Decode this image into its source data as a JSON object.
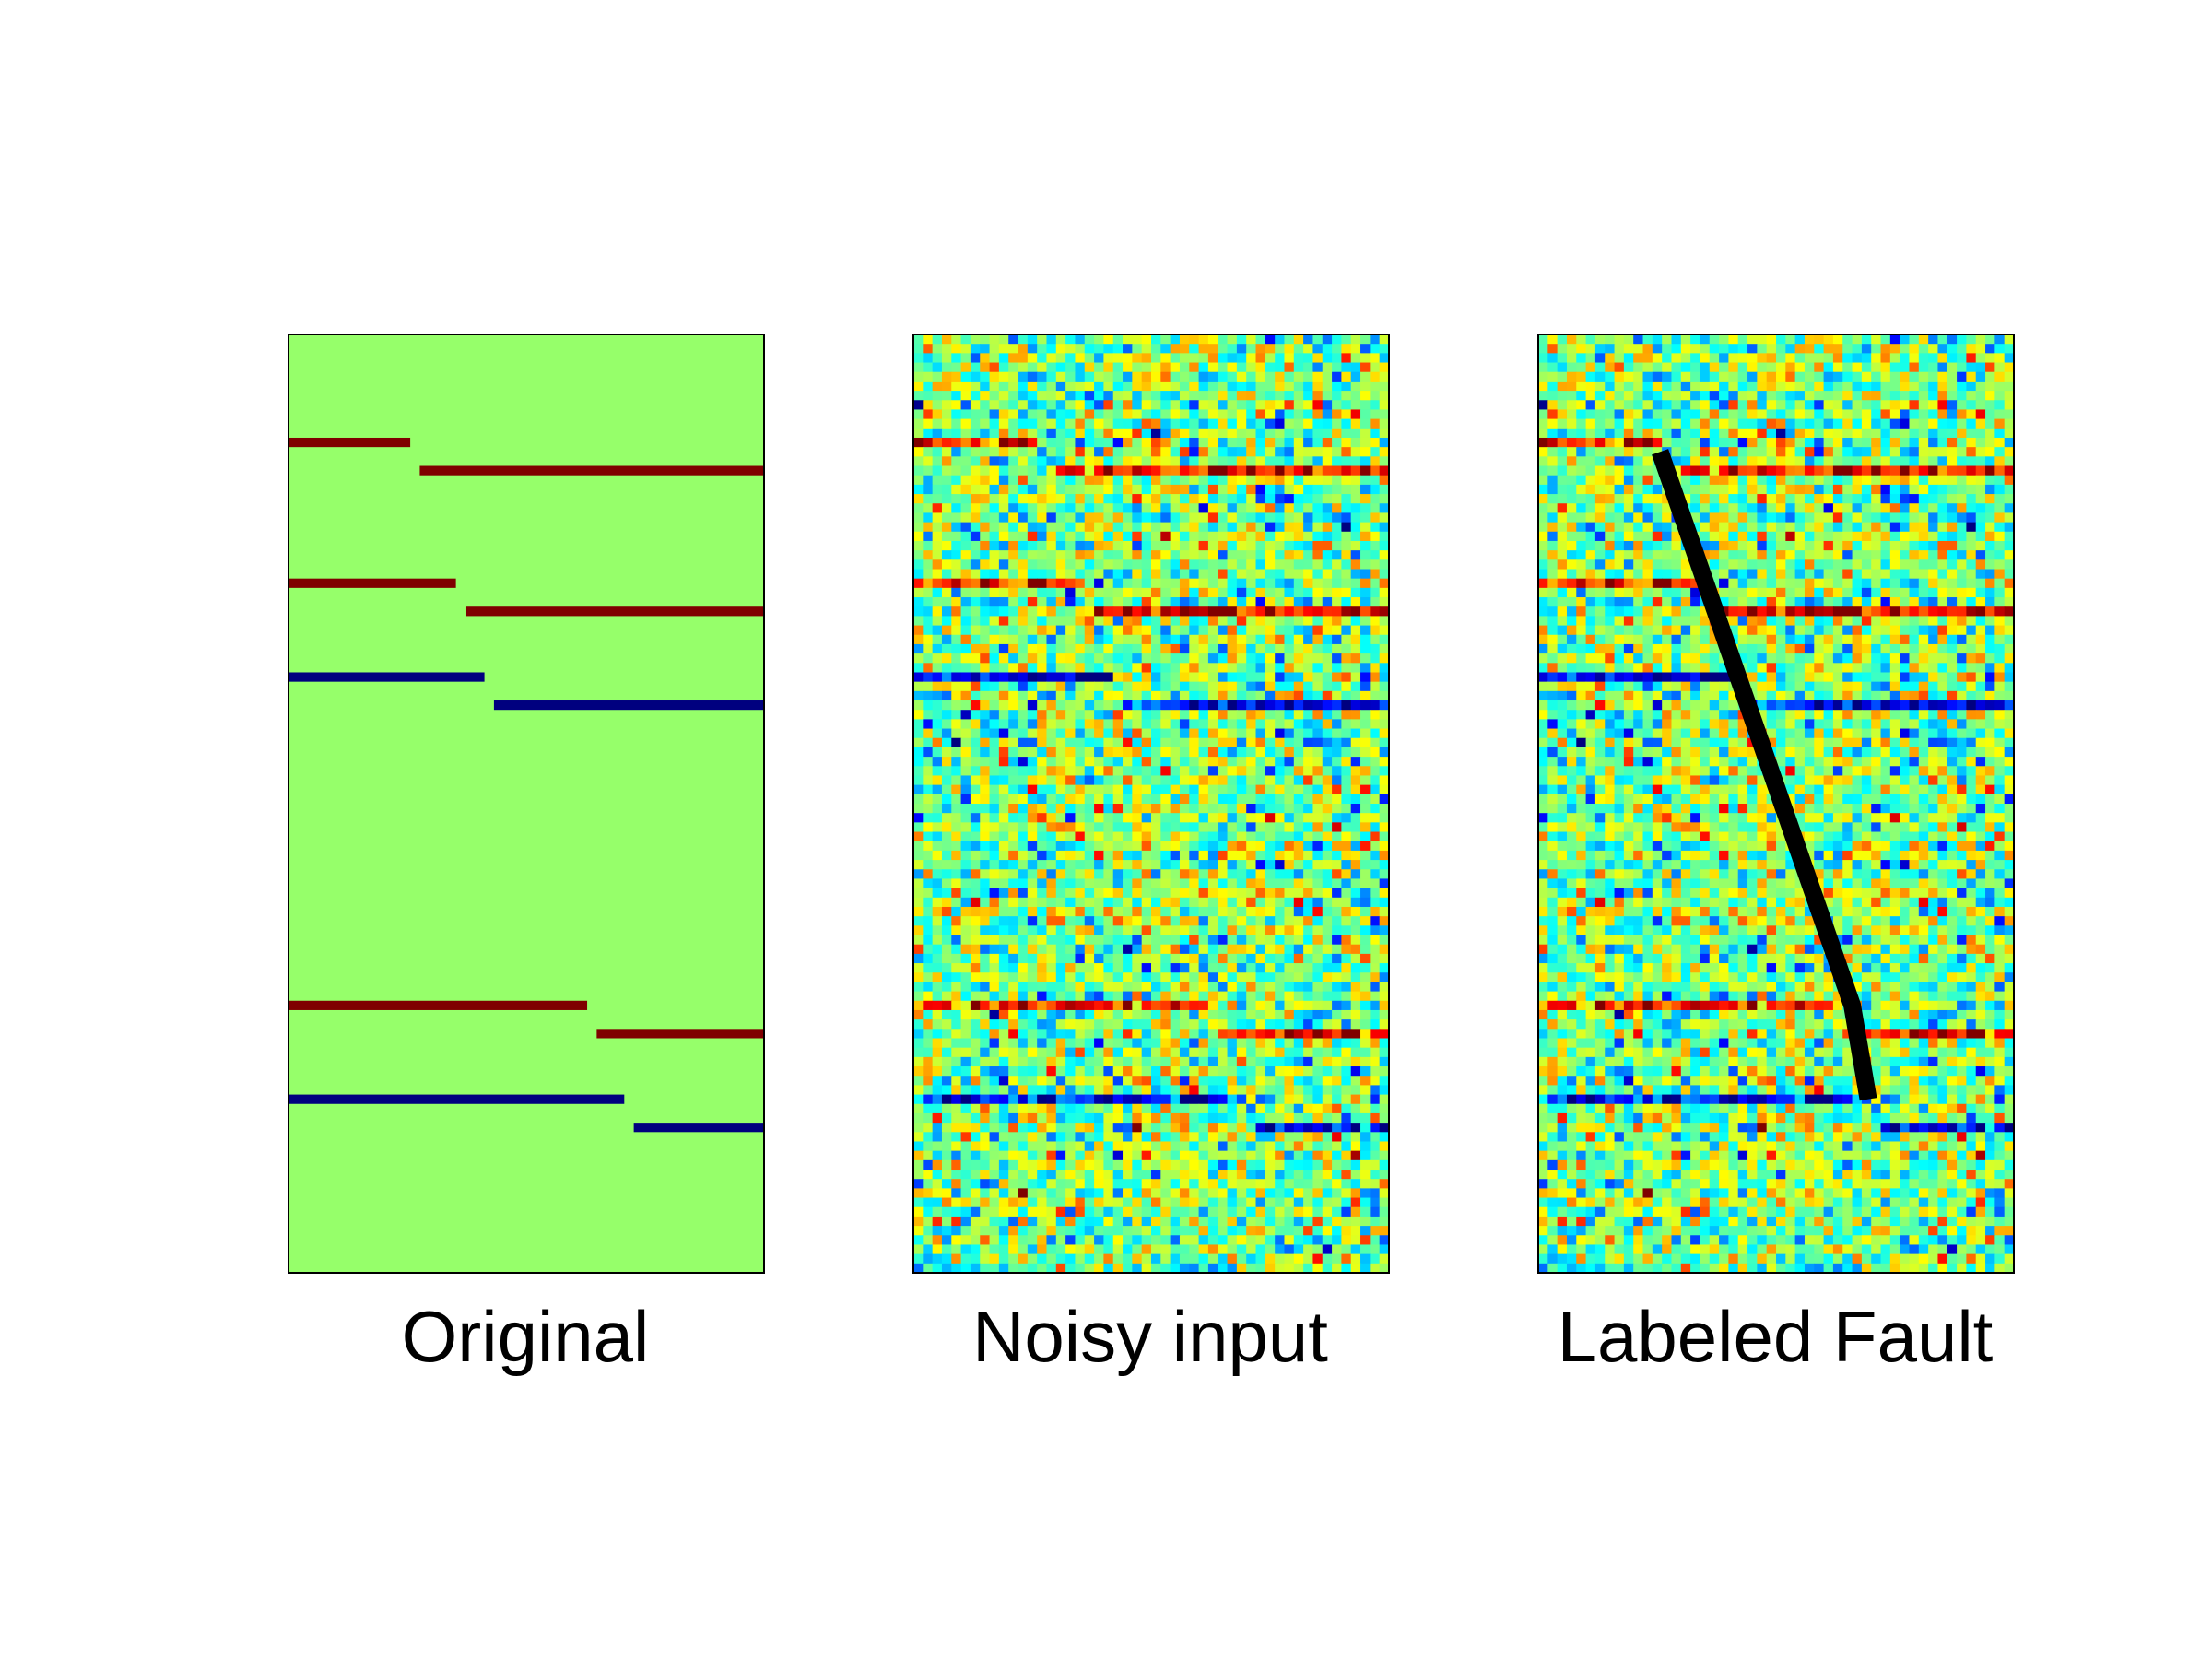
{
  "chart_data": [
    {
      "type": "heatmap",
      "label": "Original",
      "colormap": "jet",
      "grid": {
        "columns": 50,
        "rows": 100
      },
      "background_color": "#96ff6a",
      "reflectors": [
        {
          "row": 11,
          "polarity": "positive",
          "x_range": [
            0,
            12.8
          ],
          "color": "#7f0000"
        },
        {
          "row": 14,
          "polarity": "positive",
          "x_range": [
            13.8,
            50
          ],
          "color": "#7f0000"
        },
        {
          "row": 26,
          "polarity": "positive",
          "x_range": [
            0,
            17.6
          ],
          "color": "#7f0000"
        },
        {
          "row": 29,
          "polarity": "positive",
          "x_range": [
            18.7,
            50
          ],
          "color": "#7f0000"
        },
        {
          "row": 36,
          "polarity": "negative",
          "x_range": [
            0,
            20.6
          ],
          "color": "#00007f"
        },
        {
          "row": 39,
          "polarity": "negative",
          "x_range": [
            21.6,
            50
          ],
          "color": "#00007f"
        },
        {
          "row": 71,
          "polarity": "positive",
          "x_range": [
            0,
            31.4
          ],
          "color": "#7f0000"
        },
        {
          "row": 74,
          "polarity": "positive",
          "x_range": [
            32.4,
            50
          ],
          "color": "#7f0000"
        },
        {
          "row": 81,
          "polarity": "negative",
          "x_range": [
            0,
            35.3
          ],
          "color": "#00007f"
        },
        {
          "row": 84,
          "polarity": "negative",
          "x_range": [
            36.3,
            50
          ],
          "color": "#00007f"
        }
      ]
    },
    {
      "type": "heatmap",
      "label": "Noisy input",
      "colormap": "jet",
      "grid": {
        "columns": 50,
        "rows": 100
      },
      "noise": "random per-cell jet colormap values around mid-range, reflector rows retained"
    },
    {
      "type": "heatmap",
      "label": "Labeled Fault",
      "colormap": "jet",
      "grid": {
        "columns": 50,
        "rows": 100
      },
      "fault_line": {
        "color": "#000000",
        "points": [
          [
            12.8,
            12.5
          ],
          [
            33.0,
            71.5
          ],
          [
            34.7,
            81.5
          ]
        ]
      }
    }
  ]
}
